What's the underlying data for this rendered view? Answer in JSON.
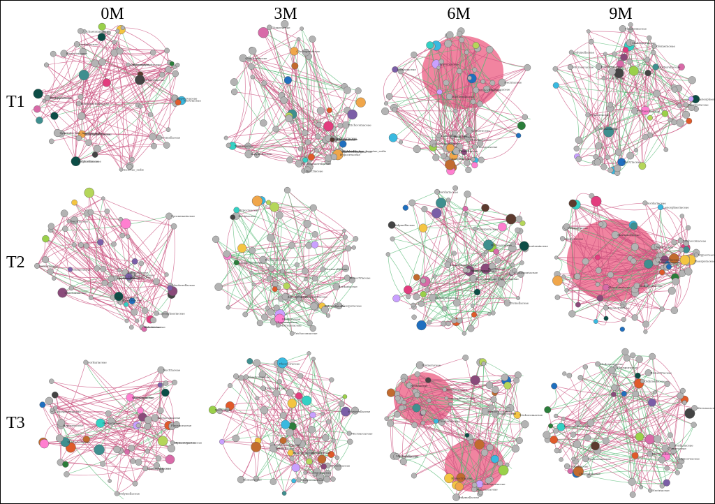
{
  "figure": {
    "columns": [
      "0M",
      "3M",
      "6M",
      "9M"
    ],
    "rows": [
      "T1",
      "T2",
      "T3"
    ]
  },
  "colors": {
    "positive_edge": "#c9507e",
    "negative_edge": "#57b976",
    "default_node": "#b3b3b3",
    "dense_fill": "#ee6f8f",
    "node_palette": [
      "#f0a64a",
      "#39b9e0",
      "#b5d65a",
      "#8a4a7a",
      "#1f6fbf",
      "#e23d7e",
      "#7b5ea7",
      "#2b7d3a",
      "#0c4d46",
      "#c26b2f",
      "#f4c542",
      "#5c3a2e",
      "#ff7fd0",
      "#33d1c4",
      "#9ad04a",
      "#d86aa8",
      "#444444",
      "#e05a2a",
      "#3f8f8f",
      "#c9a0ff"
    ]
  },
  "panels": [
    {
      "row": "T1",
      "col": "0M",
      "labels": [
        "Glomeraceae",
        "Trichocomaceae",
        "Lasiosphaeriaceae",
        "Pleosporaceae",
        "Hypocreaceae",
        "Nectriaceae",
        "Mortierellaceae",
        "Chaetomiaceae",
        "Bionectriaceae",
        "Herpotrichiellaceae",
        "Sordariaceae",
        "Tremellaceae",
        "Incertae_sedis",
        "Xylariales_fam_Incertae_sedis",
        "Ophiocordycipitaceae",
        "Didymellaceae",
        "Phaeosphaeriaceae",
        "Cladosporiaceae"
      ]
    },
    {
      "row": "T1",
      "col": "3M",
      "labels": [
        "Xylariales_fam_Incertae_sedis",
        "Mortierellaceae",
        "Chaetomiaceae",
        "Hypocreaceae",
        "Nectriaceae",
        "Pleosporaceae",
        "Lasiosphaeriaceae",
        "Microascaceae",
        "Didymellaceae",
        "Glomeraceae",
        "Plectosphaerellaceae",
        "Trichocomaceae",
        "Tremellaceae",
        "Bionectriaceae",
        "Cladosporiaceae",
        "Sordariaceae",
        "Ophiocordycipitaceae"
      ]
    },
    {
      "row": "T1",
      "col": "6M",
      "labels": [
        "Nectriaceae",
        "Hypocreaceae",
        "Pleosporaceae",
        "Trichocomaceae",
        "Chaetomiaceae",
        "Mortierellaceae",
        "Lasiosphaeriaceae",
        "Sordariaceae",
        "Glomeraceae",
        "Didymellaceae",
        "Cladosporiaceae",
        "Microascaceae",
        "Bionectriaceae",
        "Tremellaceae"
      ]
    },
    {
      "row": "T1",
      "col": "9M",
      "labels": [
        "Hypocreaceae",
        "Nectriaceae",
        "Pleosporaceae",
        "Mortierellaceae",
        "Chaetomiaceae",
        "Lasiosphaeriaceae",
        "Sordariaceae",
        "Trichocomaceae",
        "Glomeraceae",
        "Didymellaceae",
        "Cladosporiaceae",
        "Bionectriaceae",
        "Microascaceae",
        "Tremellaceae"
      ]
    },
    {
      "row": "T2",
      "col": "0M",
      "labels": [
        "Helotiaceae",
        "Sporormiaceae",
        "Chaetomiaceae",
        "Nectriaceae",
        "Hypocreaceae",
        "Pleosporaceae",
        "Pyronemataceae",
        "Lasiosphaeriaceae",
        "Mortierellaceae",
        "Trichocomaceae",
        "Glomeraceae",
        "Didymellaceae",
        "Sordariaceae",
        "Cladosporiaceae",
        "Bionectriaceae",
        "Septobasidiaceae"
      ]
    },
    {
      "row": "T2",
      "col": "3M",
      "labels": [
        "Pleosporaceae",
        "Nectriaceae",
        "Hypocreaceae",
        "Chaetomiaceae",
        "Mortierellaceae",
        "Lasiosphaeriaceae",
        "Trichocomaceae",
        "Glomeraceae",
        "Didymellaceae",
        "Sordariaceae",
        "Cladosporiaceae",
        "Aspergillaceae",
        "Phyllachoraceae",
        "Bionectriaceae",
        "Microascaceae"
      ]
    },
    {
      "row": "T2",
      "col": "6M",
      "labels": [
        "Nectriaceae",
        "Hypocreaceae",
        "Pleosporaceae",
        "Chaetomiaceae",
        "Mortierellaceae",
        "Lasiosphaeriaceae",
        "Trichocomaceae",
        "Glomeraceae",
        "Didymellaceae",
        "Sordariaceae",
        "Cladosporiaceae",
        "Bionectriaceae",
        "Microascaceae",
        "Tremellaceae"
      ]
    },
    {
      "row": "T2",
      "col": "9M",
      "labels": [
        "Hypocreaceae",
        "Nectriaceae",
        "Pleosporaceae",
        "Chaetomiaceae",
        "Mortierellaceae",
        "Lasiosphaeriaceae",
        "Trichocomaceae",
        "Glomeraceae",
        "Didymellaceae",
        "Sordariaceae",
        "Cladosporiaceae",
        "Bionectriaceae",
        "Microascaceae",
        "Tremellaceae"
      ]
    },
    {
      "row": "T3",
      "col": "0M",
      "labels": [
        "Pyronemataceae",
        "Hymenogastraceae",
        "Chaetomiaceae",
        "Nectriaceae",
        "Hypocreaceae",
        "Pleosporaceae",
        "Mortierellaceae",
        "Lasiosphaeriaceae",
        "Trichocomaceae",
        "Glomeraceae",
        "Didymellaceae",
        "Sordariaceae",
        "Cladosporiaceae",
        "Bionectriaceae",
        "Microascaceae"
      ]
    },
    {
      "row": "T3",
      "col": "3M",
      "labels": [
        "Pleosporaceae",
        "Nectriaceae",
        "Hypocreaceae",
        "Chaetomiaceae",
        "Mortierellaceae",
        "Lasiosphaeriaceae",
        "Trichocomaceae",
        "Glomeraceae",
        "Didymellaceae",
        "Sordariaceae",
        "Cladosporiaceae",
        "Bionectriaceae",
        "Microascaceae",
        "Tremellaceae"
      ]
    },
    {
      "row": "T3",
      "col": "6M",
      "labels": [
        "Hypocreaceae",
        "Nectriaceae",
        "Pleosporaceae",
        "Chaetomiaceae",
        "Mortierellaceae",
        "Lasiosphaeriaceae",
        "Trichocomaceae",
        "Glomeraceae",
        "Didymellaceae",
        "Sordariaceae",
        "Cladosporiaceae",
        "Bionectriaceae",
        "Microascaceae",
        "Tremellaceae"
      ]
    },
    {
      "row": "T3",
      "col": "9M",
      "labels": [
        "Hypocreaceae",
        "Nectriaceae",
        "Pleosporaceae",
        "Chaetomiaceae",
        "Mortierellaceae",
        "Lasiosphaeriaceae",
        "Trichocomaceae",
        "Glomeraceae",
        "Didymellaceae",
        "Sordariaceae",
        "Cladosporiaceae",
        "Bionectriaceae",
        "Microascaceae",
        "Tremellaceae"
      ]
    }
  ]
}
